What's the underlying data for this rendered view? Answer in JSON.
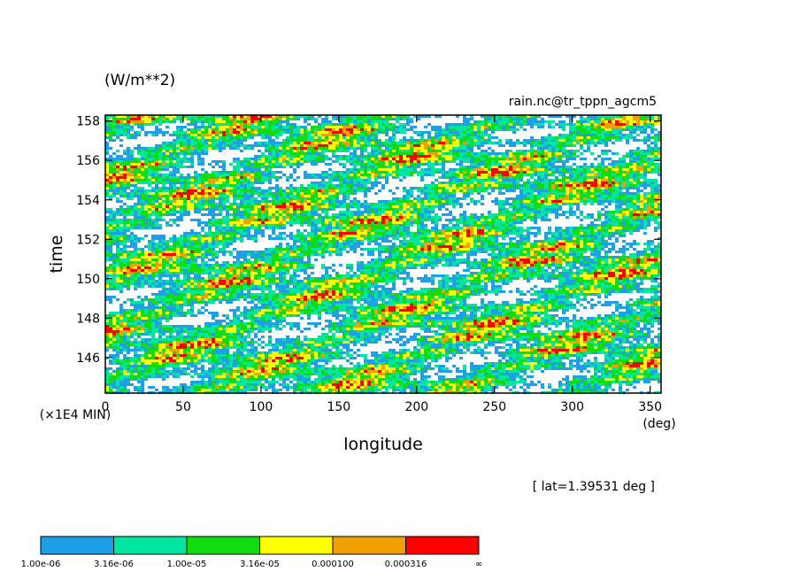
{
  "chart_data": {
    "type": "heatmap",
    "units_label": "(W/m**2)",
    "source_label": "rain.nc@tr_tppn_agcm5",
    "xlabel": "longitude",
    "ylabel": "time",
    "x_unit": "(deg)",
    "y_unit": "(×1E4 MIN)",
    "xlim": [
      0,
      357
    ],
    "ylim": [
      144.2,
      158.3
    ],
    "xticks": [
      0,
      50,
      100,
      150,
      200,
      250,
      300,
      350
    ],
    "yticks": [
      146,
      148,
      150,
      152,
      154,
      156,
      158
    ],
    "annotation": "[ lat=1.39531 deg ]",
    "colorbar": {
      "colors": [
        "#1ea0e8",
        "#00e6a0",
        "#10dc10",
        "#ffff00",
        "#f0a000",
        "#ff0000"
      ],
      "labels": [
        "1.00e-06",
        "3.16e-06",
        "1.00e-05",
        "3.16e-05",
        "0.000100",
        "0.000316",
        "∞"
      ],
      "bounds": [
        1e-06,
        3.16e-06,
        1e-05,
        3.16e-05,
        0.0001,
        0.000316
      ]
    },
    "field_note": "Dense speckled rainfall field; most values between 1e-06 and 1e-04 with scattered maxima above 3.16e-04."
  }
}
